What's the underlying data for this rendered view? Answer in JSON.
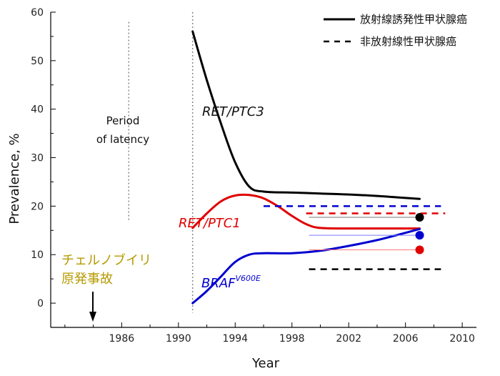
{
  "chart_data": {
    "type": "line",
    "title": "",
    "xlabel": "Year",
    "ylabel": "Prevalence, %",
    "xlim": [
      1981,
      2011
    ],
    "ylim": [
      -5,
      60
    ],
    "x_ticks": [
      1986,
      1990,
      1994,
      1998,
      2002,
      2006,
      2010
    ],
    "y_ticks": [
      0,
      10,
      20,
      30,
      40,
      50,
      60
    ],
    "grid": false,
    "series": [
      {
        "name": "RET/PTC3",
        "color": "#000000",
        "style": "solid",
        "x": [
          1991,
          1992,
          1993,
          1994,
          1995,
          1996,
          1998,
          2000,
          2002,
          2004,
          2006,
          2007
        ],
        "values": [
          56,
          46,
          37,
          29,
          24,
          23,
          22.8,
          22.6,
          22.4,
          22.1,
          21.7,
          21.5
        ]
      },
      {
        "name": "RET/PTC1",
        "color": "#e00000",
        "style": "solid",
        "x": [
          1991,
          1992,
          1993,
          1994,
          1995,
          1996,
          1997,
          1998,
          1999,
          2000,
          2002,
          2004,
          2006,
          2007
        ],
        "values": [
          15.5,
          18.5,
          21,
          22.2,
          22.3,
          21.6,
          20,
          18,
          16.3,
          15.5,
          15.4,
          15.4,
          15.4,
          15.4
        ]
      },
      {
        "name": "BRAF",
        "name_superscript": "V600E",
        "color": "#0000d0",
        "style": "solid",
        "x": [
          1991,
          1992,
          1993,
          1994,
          1995,
          1996,
          1998,
          2000,
          2002,
          2004,
          2006,
          2007
        ],
        "values": [
          0,
          2.5,
          5.5,
          8.5,
          10,
          10.3,
          10.3,
          10.8,
          11.8,
          13,
          14.5,
          15.3
        ]
      }
    ],
    "reference_lines": [
      {
        "series": "BRAF",
        "color": "#0000d0",
        "style": "dashed",
        "x": [
          1996,
          2008.5
        ],
        "y": 20
      },
      {
        "series": "RET/PTC1",
        "color": "#e00000",
        "style": "dashed",
        "x": [
          1999,
          2008.8
        ],
        "y": 18.5
      },
      {
        "series": "RET/PTC3",
        "color": "#000000",
        "style": "dashed",
        "x": [
          1999.2,
          2008.5
        ],
        "y": 7
      }
    ],
    "end_points": [
      {
        "series": "RET/PTC3",
        "color": "#000000",
        "x": 2007,
        "y": 17.7
      },
      {
        "series": "BRAF",
        "color": "#0000d0",
        "x": 2007,
        "y": 14
      },
      {
        "series": "RET/PTC1",
        "color": "#e00000",
        "x": 2007,
        "y": 11
      }
    ],
    "vertical_markers": [
      {
        "name": "chernobyl",
        "x": 1986.5
      },
      {
        "name": "latency-end",
        "x": 1991
      }
    ],
    "legend": [
      {
        "label": "放射線誘発性甲状腺癌",
        "style": "solid",
        "color": "#000000"
      },
      {
        "label": "非放射線性甲状腺癌",
        "style": "dashed",
        "color": "#000000"
      }
    ],
    "legend_position": "top-right",
    "annotations": {
      "latency": [
        "Period",
        "of latency"
      ],
      "chernobyl": [
        "チェルノブイリ",
        "原発事故"
      ]
    }
  }
}
